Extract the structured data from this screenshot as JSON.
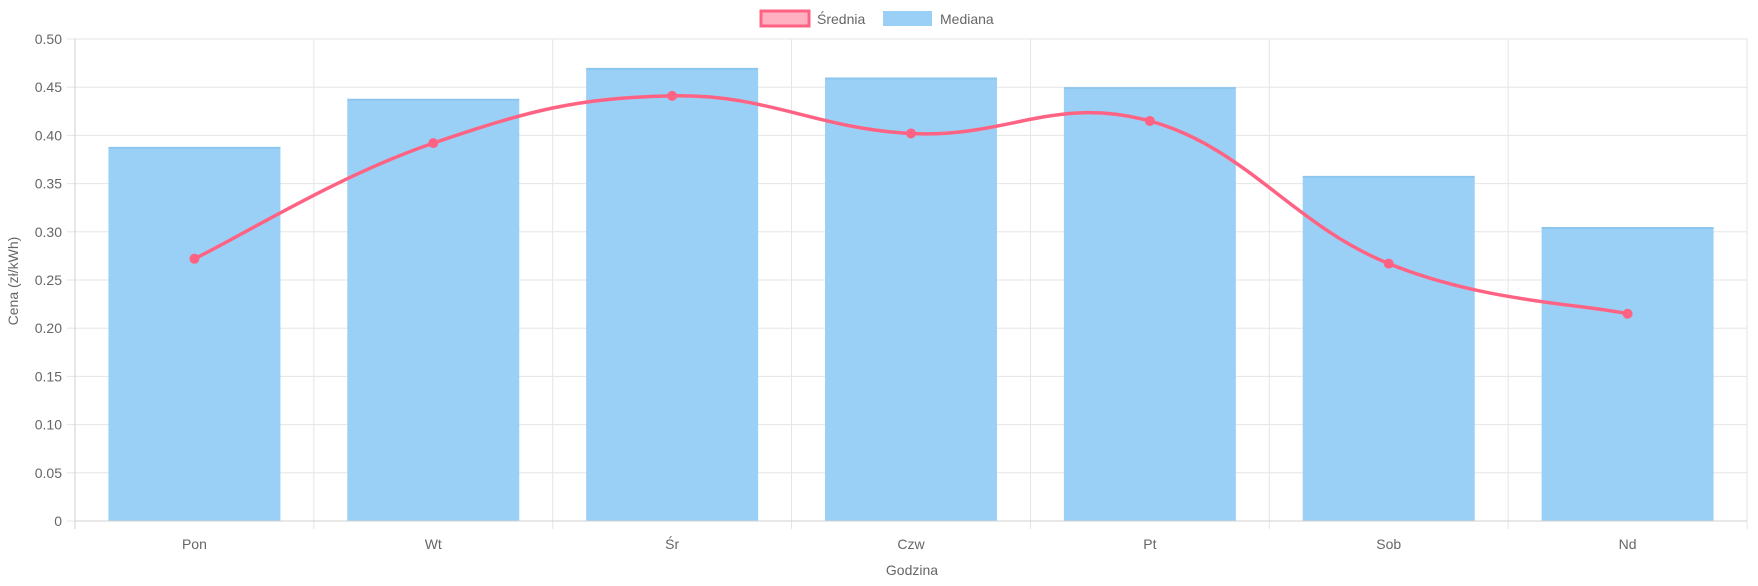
{
  "chart_data": {
    "type": "bar",
    "categories": [
      "Pon",
      "Wt",
      "Śr",
      "Czw",
      "Pt",
      "Sob",
      "Nd"
    ],
    "series": [
      {
        "name": "Średnia",
        "render": "line",
        "smooth": true,
        "values": [
          0.272,
          0.392,
          0.441,
          0.402,
          0.415,
          0.267,
          0.215
        ]
      },
      {
        "name": "Mediana",
        "render": "bar",
        "values": [
          0.387,
          0.437,
          0.469,
          0.459,
          0.449,
          0.357,
          0.304
        ]
      }
    ],
    "xlabel": "Godzina",
    "ylabel": "Cena (zł/kWh)",
    "ylim": [
      0,
      0.5
    ],
    "yticks": [
      "0",
      "0.05",
      "0.10",
      "0.15",
      "0.20",
      "0.25",
      "0.30",
      "0.35",
      "0.40",
      "0.45",
      "0.50"
    ],
    "ytick_values": [
      0,
      0.05,
      0.1,
      0.15,
      0.2,
      0.25,
      0.3,
      0.35,
      0.4,
      0.45,
      0.5
    ],
    "grid": true,
    "legend": "top-center"
  },
  "colors": {
    "line": "#ff6384",
    "line_fill": "#ffb1c1",
    "bar": "#9ad0f5",
    "bar_legend": "#9ad0f5",
    "grid": "#e5e5e5",
    "text": "#666666"
  }
}
